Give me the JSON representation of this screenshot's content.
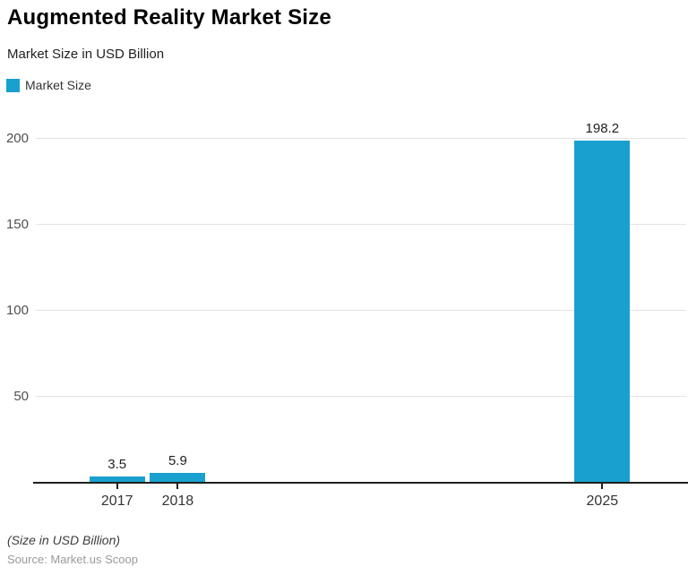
{
  "header": {
    "title": "Augmented Reality Market Size",
    "subtitle": "Market Size in USD Billion"
  },
  "legend": {
    "items": [
      {
        "label": "Market Size",
        "color": "#1AA0CE"
      }
    ]
  },
  "chart_data": {
    "type": "bar",
    "title": "Augmented Reality Market Size",
    "subtitle": "Market Size in USD Billion",
    "categories": [
      "2017",
      "2018",
      "2025"
    ],
    "x": [
      2017,
      2018,
      2025
    ],
    "series": [
      {
        "name": "Market Size",
        "values": [
          3.5,
          5.9,
          198.2
        ],
        "color": "#1AA0CE"
      }
    ],
    "value_labels": [
      "3.5",
      "5.9",
      "198.2"
    ],
    "yticks": [
      50,
      100,
      150,
      200
    ],
    "ylim": [
      0,
      207
    ],
    "xlabel": "",
    "ylabel": "",
    "grid": true,
    "legend_position": "top-left",
    "x_axis_type": "linear-year"
  },
  "footer": {
    "note": "(Size in USD Billion)",
    "source": "Source: Market.us Scoop"
  },
  "colors": {
    "bar": "#1AA0CE",
    "grid": "#E4E4E4",
    "axis": "#1F1F1F",
    "y_label": "#4F4F4F",
    "x_label": "#343434",
    "value_label": "#1F1F1F"
  }
}
